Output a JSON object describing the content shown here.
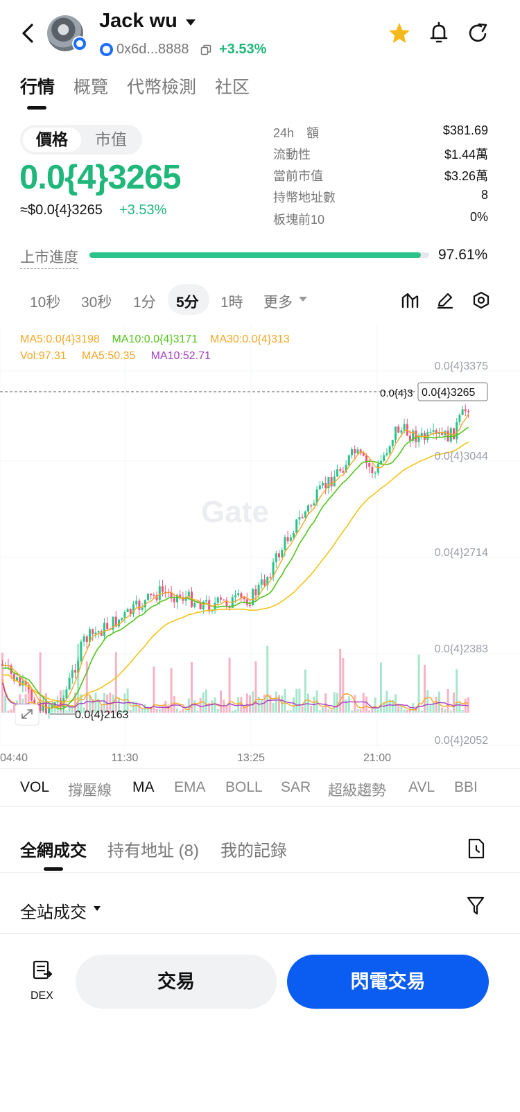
{
  "header": {
    "token_name": "Jack wu",
    "address": "0x6d...8888",
    "change": "+3.53%"
  },
  "tabs": [
    "行情",
    "概覽",
    "代幣檢測",
    "社区"
  ],
  "price_toggle": {
    "active": "價格",
    "inactive": "市值"
  },
  "price": {
    "value": "0.0{4}3265",
    "usd": "≈$0.0{4}3265",
    "usd_change": "+3.53%"
  },
  "stats": [
    {
      "label": "24h　額",
      "value": "$381.69"
    },
    {
      "label": "流動性",
      "value": "$1.44萬"
    },
    {
      "label": "當前市值",
      "value": "$3.26萬"
    },
    {
      "label": "持幣地址數",
      "value": "8"
    },
    {
      "label": "板塊前10",
      "value": "0%"
    }
  ],
  "progress": {
    "label": "上市進度",
    "percent_text": "97.61%",
    "percent": 97.61
  },
  "intervals": {
    "items": [
      "10秒",
      "30秒",
      "1分",
      "5分",
      "1時",
      "更多"
    ],
    "active": "5分"
  },
  "chart": {
    "ma_legend": {
      "ma5": "MA5:0.0{4}3198",
      "ma10": "MA10:0.0{4}3171",
      "ma30": "MA30:0.0{4}313"
    },
    "vol_legend": {
      "vol": "Vol:97.31",
      "ma5": "MA5:50.35",
      "ma10": "MA10:52.71"
    },
    "watermark": "Gate",
    "price_tag": "0.0{4}3265",
    "price_tag_left": "0.0{4}3",
    "low_label": "0.0{4}2163",
    "colors": {
      "up": "#2cc38a",
      "down": "#f0547b",
      "ma5": "#f5a623",
      "ma10": "#52c41a",
      "ma30": "#f0c419",
      "vol_ma5": "#f5a623",
      "vol_ma10": "#a63ec2"
    }
  },
  "chart_data": {
    "type": "candlestick",
    "y_ticks": [
      "0.0{4}3375",
      "0.0{4}3044",
      "0.0{4}2714",
      "0.0{4}2383",
      "0.0{4}2052"
    ],
    "x_ticks": [
      "04:40",
      "11:30",
      "13:25",
      "21:00"
    ],
    "last_price": "0.0{4}3265",
    "low_marker": "0.0{4}2163"
  },
  "indicators": {
    "items": [
      "VOL",
      "撐壓線",
      "MA",
      "EMA",
      "BOLL",
      "SAR",
      "超級趨勢",
      "AVL",
      "BBI"
    ],
    "active": [
      "VOL",
      "MA"
    ]
  },
  "bottom_tabs": [
    "全網成交",
    "持有地址 (8)",
    "我的記錄"
  ],
  "trade_filter": "全站成交",
  "footer": {
    "dex": "DEX",
    "trade": "交易",
    "flash": "閃電交易"
  }
}
